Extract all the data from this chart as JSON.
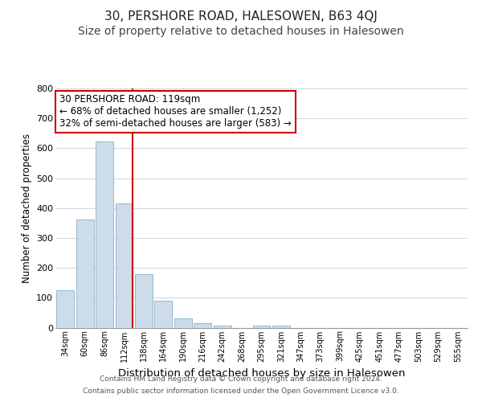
{
  "title": "30, PERSHORE ROAD, HALESOWEN, B63 4QJ",
  "subtitle": "Size of property relative to detached houses in Halesowen",
  "xlabel": "Distribution of detached houses by size in Halesowen",
  "ylabel": "Number of detached properties",
  "categories": [
    "34sqm",
    "60sqm",
    "86sqm",
    "112sqm",
    "138sqm",
    "164sqm",
    "190sqm",
    "216sqm",
    "242sqm",
    "268sqm",
    "295sqm",
    "321sqm",
    "347sqm",
    "373sqm",
    "399sqm",
    "425sqm",
    "451sqm",
    "477sqm",
    "503sqm",
    "529sqm",
    "555sqm"
  ],
  "values": [
    125,
    363,
    623,
    415,
    178,
    90,
    32,
    14,
    8,
    0,
    8,
    8,
    0,
    0,
    0,
    0,
    0,
    0,
    0,
    0,
    0
  ],
  "bar_color": "#cddceb",
  "bar_edge_color": "#8aaec8",
  "highlight_line_color": "#cc0000",
  "annotation_line1": "30 PERSHORE ROAD: 119sqm",
  "annotation_line2": "← 68% of detached houses are smaller (1,252)",
  "annotation_line3": "32% of semi-detached houses are larger (583) →",
  "annotation_box_color": "#ffffff",
  "annotation_box_edge_color": "#cc0000",
  "ylim": [
    0,
    800
  ],
  "yticks": [
    0,
    100,
    200,
    300,
    400,
    500,
    600,
    700,
    800
  ],
  "background_color": "#ffffff",
  "plot_bg_color": "#ffffff",
  "grid_color": "#d0d8e4",
  "footer_line1": "Contains HM Land Registry data © Crown copyright and database right 2024.",
  "footer_line2": "Contains public sector information licensed under the Open Government Licence v3.0.",
  "title_fontsize": 11,
  "subtitle_fontsize": 10,
  "xlabel_fontsize": 9.5,
  "ylabel_fontsize": 8.5,
  "annotation_fontsize": 8.5,
  "footer_fontsize": 6.5
}
